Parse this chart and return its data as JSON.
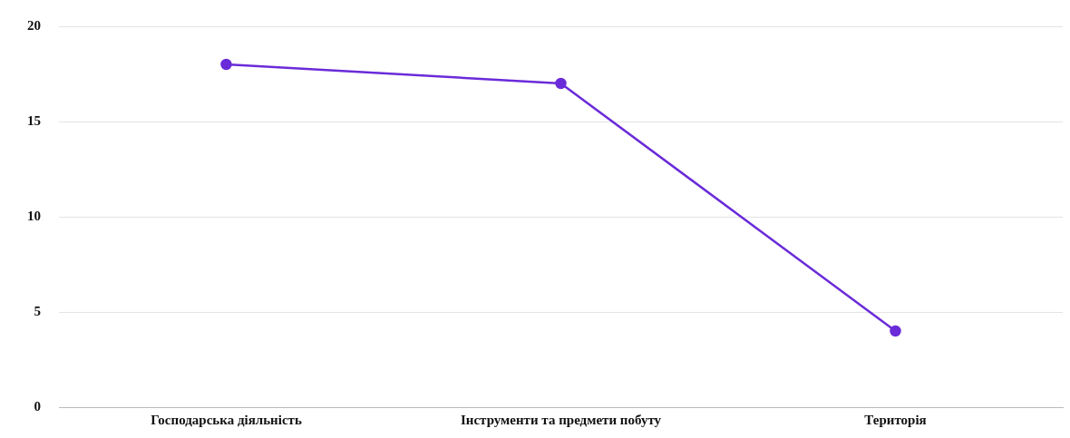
{
  "chart_data": {
    "type": "line",
    "categories": [
      "Господарська діяльність",
      "Інструменти та предмети побуту",
      "Територія"
    ],
    "series": [
      {
        "color": "#6a2bd9",
        "values": [
          18,
          17,
          4
        ]
      }
    ],
    "ylim": [
      0,
      20
    ],
    "yticks": [
      0,
      5,
      10,
      15,
      20
    ],
    "grid": "y",
    "legend": false,
    "marker": "circle",
    "line_style": "solid"
  }
}
